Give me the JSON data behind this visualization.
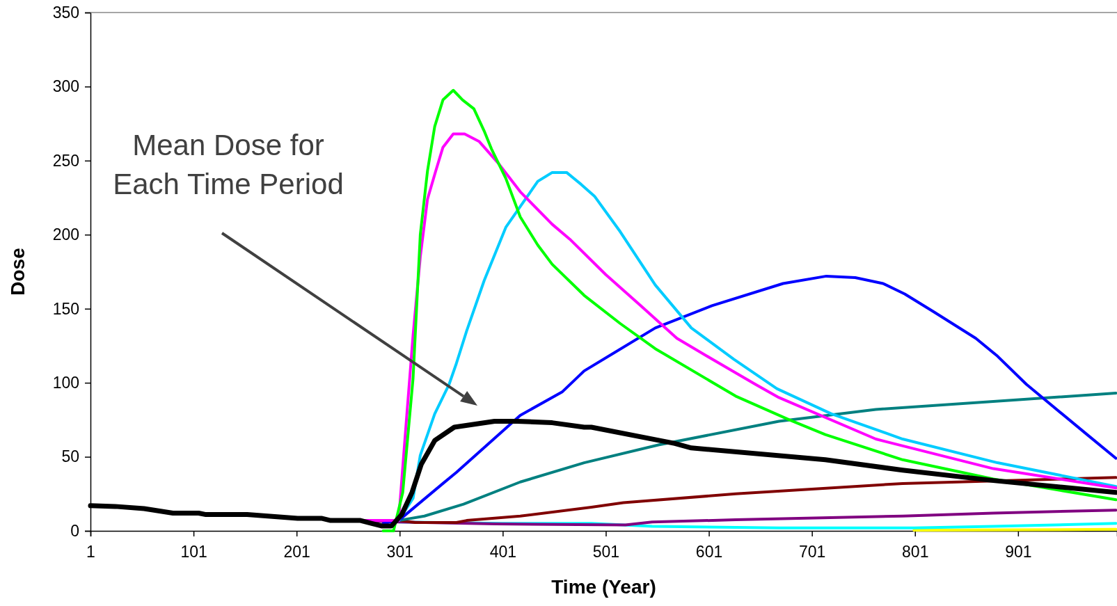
{
  "chart_data": {
    "type": "line",
    "xlabel": "Time (Year)",
    "ylabel": "Dose",
    "xlim": [
      1,
      997
    ],
    "xticks": [
      1,
      101,
      201,
      301,
      401,
      501,
      601,
      701,
      801,
      901
    ],
    "ylim": [
      0,
      350
    ],
    "yticks": [
      0,
      50,
      100,
      150,
      200,
      250,
      300,
      350
    ],
    "annotations": [
      "Mean Dose for\nEach Time Period"
    ],
    "series": [
      {
        "color": "#ffff00",
        "x": [
          800,
          996
        ],
        "values": [
          0.5,
          1
        ]
      },
      {
        "color": "#00ffff",
        "x": [
          300,
          400,
          487,
          546,
          669,
          800,
          877,
          996
        ],
        "values": [
          6,
          5,
          5,
          3,
          2,
          2,
          3,
          5
        ]
      },
      {
        "color": "#800080",
        "x": [
          265,
          300,
          394,
          520,
          546,
          627,
          789,
          877,
          996
        ],
        "values": [
          7,
          6,
          4.7,
          4,
          6,
          7.5,
          10,
          12,
          14
        ]
      },
      {
        "color": "#800000",
        "x": [
          265,
          300,
          316,
          356,
          366,
          418,
          487,
          518,
          627,
          789,
          996
        ],
        "values": [
          7,
          7,
          5.6,
          5.6,
          7,
          10,
          16,
          19,
          25,
          32,
          36
        ]
      },
      {
        "color": "#008080",
        "x": [
          265,
          300,
          325,
          363,
          418,
          480,
          552,
          669,
          763,
          996
        ],
        "values": [
          7,
          7,
          10,
          18,
          33,
          46,
          58,
          74,
          82,
          93
        ]
      },
      {
        "color": "#0000ff",
        "x": [
          285,
          300,
          343,
          356,
          418,
          459,
          480,
          549,
          604,
          673,
          715,
          743,
          770,
          791,
          819,
          860,
          881,
          909,
          968,
          996
        ],
        "values": [
          5,
          7,
          32,
          39.5,
          78,
          94,
          108,
          137,
          152,
          167,
          172,
          171,
          167,
          160,
          148,
          130,
          118,
          99,
          65,
          49
        ]
      },
      {
        "color": "#00ccff",
        "x": [
          300,
          314,
          321,
          335,
          349,
          356,
          366,
          383,
          404,
          418,
          435,
          449,
          463,
          477,
          490,
          515,
          549,
          584,
          625,
          667,
          720,
          789,
          881,
          996
        ],
        "values": [
          7,
          22,
          51,
          79,
          99,
          113,
          135,
          169,
          205,
          219,
          236,
          242,
          242,
          234,
          226,
          202,
          166,
          137,
          116,
          96,
          79,
          62,
          46,
          30
        ]
      },
      {
        "color": "#ff00ff",
        "x": [
          265,
          300,
          307,
          314,
          321,
          328,
          336,
          343,
          353,
          364,
          378,
          397,
          418,
          449,
          466,
          501,
          535,
          570,
          604,
          646,
          669,
          763,
          877,
          996
        ],
        "values": [
          7,
          7,
          70,
          132,
          185,
          224,
          243,
          259,
          268,
          268,
          263,
          248,
          229,
          207,
          197,
          173,
          152,
          130,
          116,
          99,
          90,
          62,
          42,
          29
        ]
      },
      {
        "color": "#00ff00",
        "x": [
          285,
          295,
          304,
          314,
          321,
          328,
          335,
          343,
          353,
          362,
          373,
          383,
          390,
          404,
          418,
          435,
          449,
          480,
          515,
          549,
          627,
          679,
          714,
          789,
          877,
          996
        ],
        "values": [
          0,
          0,
          26,
          103,
          200,
          243,
          273,
          291,
          297.5,
          291,
          285,
          270,
          258,
          238,
          212,
          193,
          180,
          159,
          140,
          123,
          91,
          75,
          65,
          48,
          35,
          21
        ]
      },
      {
        "color": "#000000",
        "x": [
          1,
          25,
          53,
          81,
          106,
          113,
          153,
          202,
          225,
          234,
          263,
          274,
          284,
          293,
          303,
          313,
          322,
          335,
          354,
          393,
          415,
          449,
          480,
          487,
          568,
          584,
          714,
          789,
          877,
          996
        ],
        "values": [
          17,
          16.5,
          15,
          12,
          12,
          11,
          11,
          8.5,
          8.5,
          7,
          7,
          5,
          3.3,
          3.3,
          11,
          26,
          45,
          61,
          70,
          74,
          74,
          73,
          70,
          70,
          59,
          56,
          48,
          41,
          34,
          26
        ]
      }
    ]
  }
}
